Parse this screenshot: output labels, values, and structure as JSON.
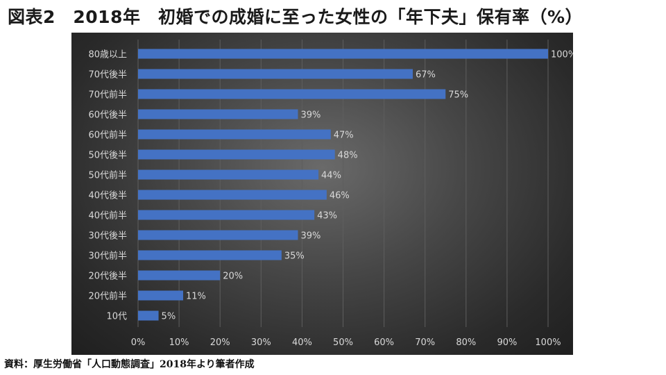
{
  "title": "図表2　2018年　初婚での成婚に至った女性の「年下夫」保有率（%）",
  "source": "資料：厚生労働省「人口動態調査」2018年より筆者作成",
  "chart_data": {
    "type": "bar",
    "orientation": "horizontal",
    "title": "図表2　2018年　初婚での成婚に至った女性の「年下夫」保有率（%）",
    "categories": [
      "80歳以上",
      "70代後半",
      "70代前半",
      "60代後半",
      "60代前半",
      "50代後半",
      "50代前半",
      "40代後半",
      "40代前半",
      "30代後半",
      "30代前半",
      "20代後半",
      "20代前半",
      "10代"
    ],
    "values": [
      100,
      67,
      75,
      39,
      47,
      48,
      44,
      46,
      43,
      39,
      35,
      20,
      11,
      5
    ],
    "value_labels": [
      "100%",
      "67%",
      "75%",
      "39%",
      "47%",
      "48%",
      "44%",
      "46%",
      "43%",
      "39%",
      "35%",
      "20%",
      "11%",
      "5%"
    ],
    "xlim": [
      0,
      100
    ],
    "xticks": [
      0,
      10,
      20,
      30,
      40,
      50,
      60,
      70,
      80,
      90,
      100
    ],
    "xtick_labels": [
      "0%",
      "10%",
      "20%",
      "30%",
      "40%",
      "50%",
      "60%",
      "70%",
      "80%",
      "90%",
      "100%"
    ],
    "xlabel": "",
    "ylabel": "",
    "grid": true,
    "legend": "none",
    "colors": {
      "bar": "#4472c4",
      "grid": "#5e5e5e",
      "text": "#d9d9d9",
      "background": "#404040"
    }
  }
}
